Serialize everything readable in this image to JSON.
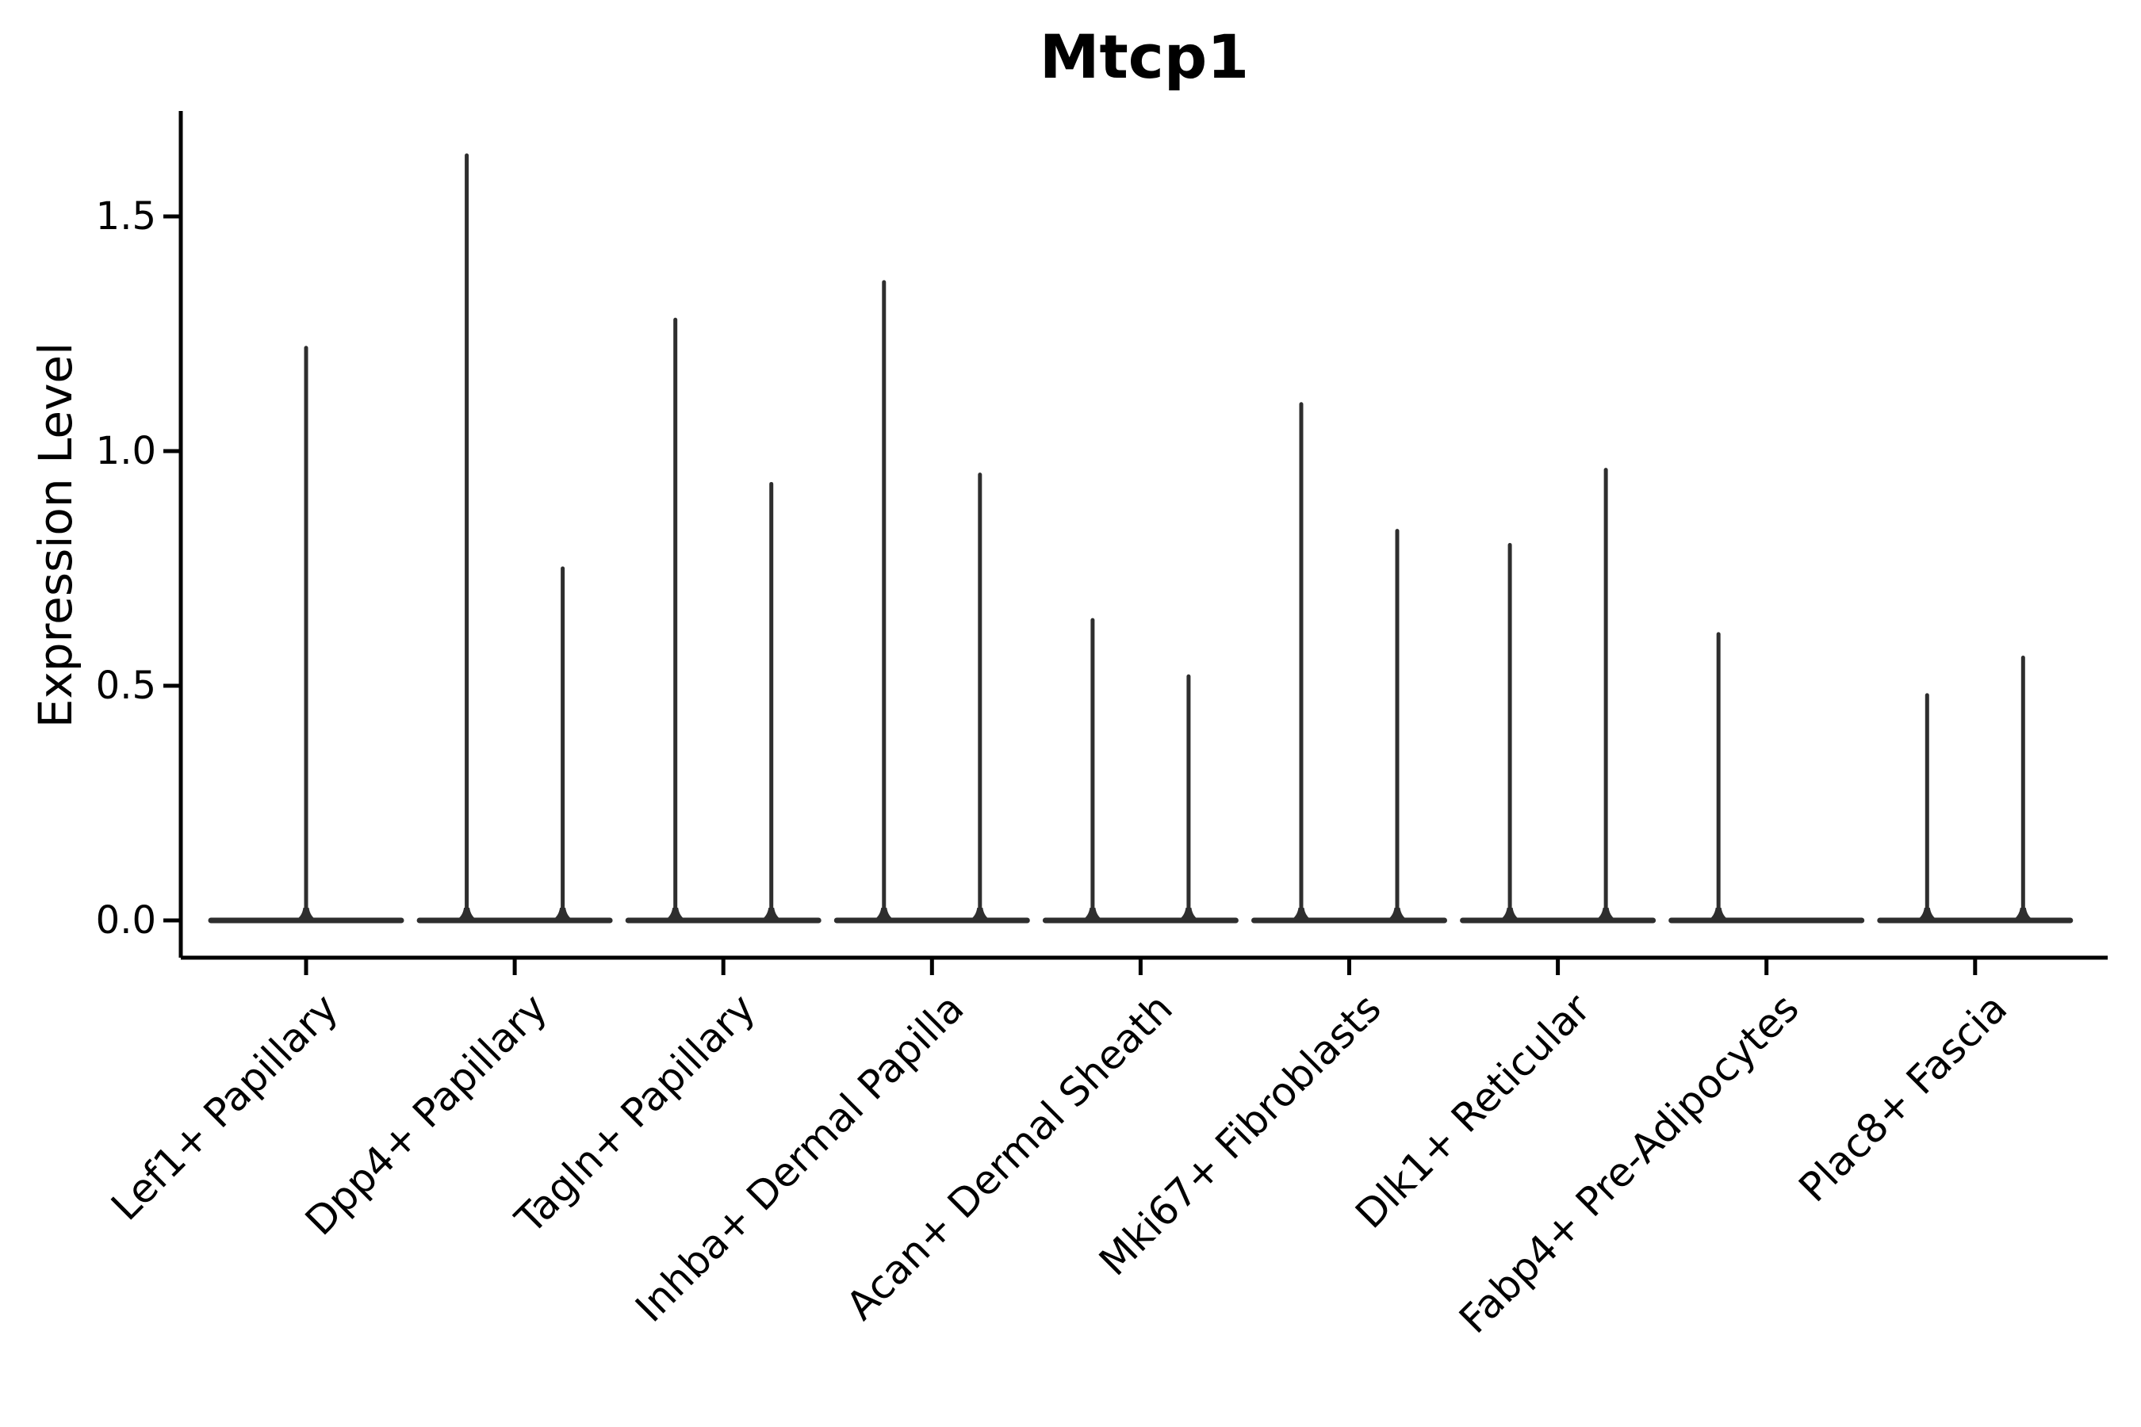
{
  "title": "Mtcp1",
  "ylabel": "Expression Level",
  "chart_data": {
    "type": "violin",
    "title": "Mtcp1",
    "xlabel": "",
    "ylabel": "Expression Level",
    "categories": [
      "Lef1+ Papillary",
      "Dpp4+ Papillary",
      "Tagln+ Papillary",
      "Inhba+ Dermal Papilla",
      "Acan+ Dermal Sheath",
      "Mki67+ Fibroblasts",
      "Dlk1+ Reticular",
      "Fabp4+ Pre-Adipocytes",
      "Plac8+ Fascia"
    ],
    "yticks": [
      0.0,
      0.5,
      1.0,
      1.5
    ],
    "ylim": [
      -0.08,
      1.73
    ],
    "grid": false,
    "legend": "none",
    "description": "Collapsed violins: wide flat base at 0 expression with thin spikes rising to the maximum expression value; two dodged violins per category where two spikes are shown",
    "violins": [
      {
        "category": "Lef1+ Papillary",
        "spikes": [
          {
            "offset": 0.0,
            "max": 1.22
          }
        ]
      },
      {
        "category": "Dpp4+ Papillary",
        "spikes": [
          {
            "offset": -0.23,
            "max": 1.63
          },
          {
            "offset": 0.23,
            "max": 0.75
          }
        ]
      },
      {
        "category": "Tagln+ Papillary",
        "spikes": [
          {
            "offset": -0.23,
            "max": 1.28
          },
          {
            "offset": 0.23,
            "max": 0.93
          }
        ]
      },
      {
        "category": "Inhba+ Dermal Papilla",
        "spikes": [
          {
            "offset": -0.23,
            "max": 1.36
          },
          {
            "offset": 0.23,
            "max": 0.95
          }
        ]
      },
      {
        "category": "Acan+ Dermal Sheath",
        "spikes": [
          {
            "offset": -0.23,
            "max": 0.64
          },
          {
            "offset": 0.23,
            "max": 0.52
          }
        ]
      },
      {
        "category": "Mki67+ Fibroblasts",
        "spikes": [
          {
            "offset": -0.23,
            "max": 1.1
          },
          {
            "offset": 0.23,
            "max": 0.83
          }
        ]
      },
      {
        "category": "Dlk1+ Reticular",
        "spikes": [
          {
            "offset": -0.23,
            "max": 0.8
          },
          {
            "offset": 0.23,
            "max": 0.96
          }
        ]
      },
      {
        "category": "Fabp4+ Pre-Adipocytes",
        "spikes": [
          {
            "offset": -0.23,
            "max": 0.61
          }
        ]
      },
      {
        "category": "Plac8+ Fascia",
        "spikes": [
          {
            "offset": -0.23,
            "max": 0.48
          },
          {
            "offset": 0.23,
            "max": 0.56
          }
        ]
      }
    ],
    "colors": {
      "violin_line": "#2e2e2e",
      "axis": "#000000",
      "text": "#000000",
      "background": "#ffffff"
    }
  }
}
